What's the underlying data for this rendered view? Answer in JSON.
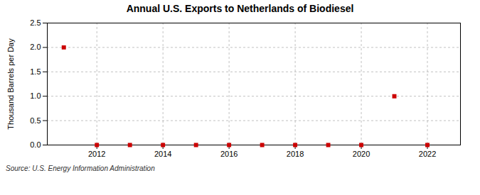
{
  "chart_data": {
    "type": "scatter",
    "title": "Annual U.S. Exports to Netherlands of Biodiesel",
    "ylabel": "Thousand Barrels per Day",
    "annotations": [
      "Source: U.S. Energy Information Administration"
    ],
    "x": [
      2011,
      2012,
      2013,
      2014,
      2015,
      2016,
      2017,
      2018,
      2019,
      2020,
      2021,
      2022
    ],
    "values": [
      2.0,
      0.0,
      0.0,
      0.0,
      0.0,
      0.0,
      0.0,
      0.0,
      0.0,
      0.0,
      1.0,
      0.0
    ],
    "color": "#cc0000",
    "marker": "square",
    "xlim": [
      2010.5,
      2023
    ],
    "xticks": [
      2012,
      2014,
      2016,
      2018,
      2020,
      2022
    ],
    "ylim": [
      0,
      2.5
    ],
    "yticks": [
      {
        "value": 0.0,
        "label": "0.0"
      },
      0.5,
      {
        "value": 1.0,
        "label": "1.0"
      },
      1.5,
      {
        "value": 2.0,
        "label": "2.0"
      },
      2.5
    ],
    "grid": true
  }
}
